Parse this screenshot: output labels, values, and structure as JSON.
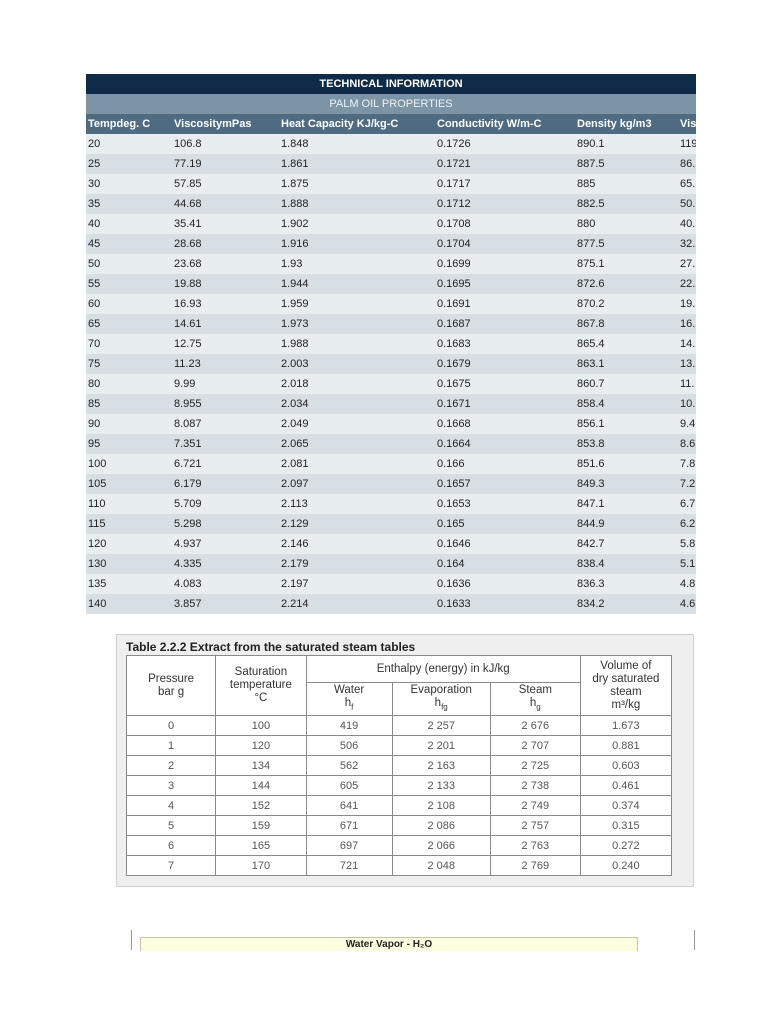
{
  "palm_table": {
    "title": "TECHNICAL INFORMATION",
    "subtitle": "PALM OIL PROPERTIES",
    "headers": [
      "Tempdeg. C",
      "ViscositymPas",
      "Heat Capacity KJ/kg-C",
      "Conductivity W/m-C",
      "Density kg/m3",
      "Vis"
    ],
    "rows": [
      [
        "20",
        "106.8",
        "1.848",
        "0.1726",
        "890.1",
        "119"
      ],
      [
        "25",
        "77.19",
        "1.861",
        "0.1721",
        "887.5",
        "86."
      ],
      [
        "30",
        "57.85",
        "1.875",
        "0.1717",
        "885",
        "65."
      ],
      [
        "35",
        "44.68",
        "1.888",
        "0.1712",
        "882.5",
        "50."
      ],
      [
        "40",
        "35.41",
        "1.902",
        "0.1708",
        "880",
        "40."
      ],
      [
        "45",
        "28.68",
        "1.916",
        "0.1704",
        "877.5",
        "32."
      ],
      [
        "50",
        "23.68",
        "1.93",
        "0.1699",
        "875.1",
        "27."
      ],
      [
        "55",
        "19.88",
        "1.944",
        "0.1695",
        "872.6",
        "22."
      ],
      [
        "60",
        "16.93",
        "1.959",
        "0.1691",
        "870.2",
        "19."
      ],
      [
        "65",
        "14.61",
        "1.973",
        "0.1687",
        "867.8",
        "16."
      ],
      [
        "70",
        "12.75",
        "1.988",
        "0.1683",
        "865.4",
        "14."
      ],
      [
        "75",
        "11.23",
        "2.003",
        "0.1679",
        "863.1",
        "13."
      ],
      [
        "80",
        "9.99",
        "2.018",
        "0.1675",
        "860.7",
        "11."
      ],
      [
        "85",
        "8.955",
        "2.034",
        "0.1671",
        "858.4",
        "10."
      ],
      [
        "90",
        "8.087",
        "2.049",
        "0.1668",
        "856.1",
        "9.4"
      ],
      [
        "95",
        "7.351",
        "2.065",
        "0.1664",
        "853.8",
        "8.6"
      ],
      [
        "100",
        "6.721",
        "2.081",
        "0.166",
        "851.6",
        "7.8"
      ],
      [
        "105",
        "6.179",
        "2.097",
        "0.1657",
        "849.3",
        "7.2"
      ],
      [
        "110",
        "5.709",
        "2.113",
        "0.1653",
        "847.1",
        "6.7"
      ],
      [
        "115",
        "5.298",
        "2.129",
        "0.165",
        "844.9",
        "6.2"
      ],
      [
        "120",
        "4.937",
        "2.146",
        "0.1646",
        "842.7",
        "5.8"
      ],
      [
        "130",
        "4.335",
        "2.179",
        "0.164",
        "838.4",
        "5.1"
      ],
      [
        "135",
        "4.083",
        "2.197",
        "0.1636",
        "836.3",
        "4.8"
      ],
      [
        "140",
        "3.857",
        "2.214",
        "0.1633",
        "834.2",
        "4.6"
      ]
    ]
  },
  "steam_table": {
    "title": "Table 2.2.2 Extract from the saturated steam tables",
    "headers": {
      "pressure": [
        "Pressure",
        "bar g"
      ],
      "saturation": [
        "Saturation",
        "temperature",
        "°C"
      ],
      "enthalpy": "Enthalpy (energy) in kJ/kg",
      "water": "Water",
      "water_symbol": "h",
      "water_sub": "f",
      "evaporation": "Evaporation",
      "evaporation_symbol": "h",
      "evaporation_sub": "fg",
      "steam": "Steam",
      "steam_symbol": "h",
      "steam_sub": "g",
      "volume": [
        "Volume of",
        "dry saturated",
        "steam"
      ],
      "volume_unit": "m³/kg"
    },
    "rows": [
      [
        "0",
        "100",
        "419",
        "2 257",
        "2 676",
        "1.673"
      ],
      [
        "1",
        "120",
        "506",
        "2 201",
        "2 707",
        "0.881"
      ],
      [
        "2",
        "134",
        "562",
        "2 163",
        "2 725",
        "0.603"
      ],
      [
        "3",
        "144",
        "605",
        "2 133",
        "2 738",
        "0.461"
      ],
      [
        "4",
        "152",
        "641",
        "2 108",
        "2 749",
        "0.374"
      ],
      [
        "5",
        "159",
        "671",
        "2 086",
        "2 757",
        "0.315"
      ],
      [
        "6",
        "165",
        "697",
        "2 066",
        "2 763",
        "0.272"
      ],
      [
        "7",
        "170",
        "721",
        "2 048",
        "2 769",
        "0.240"
      ]
    ]
  },
  "water_vapor": {
    "title": "Water Vapor - H₂O"
  }
}
